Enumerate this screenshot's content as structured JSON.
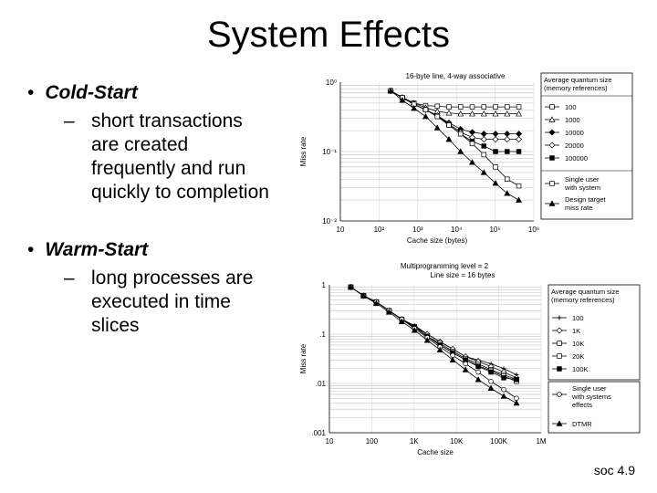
{
  "slide": {
    "title": "System Effects",
    "bullets": [
      {
        "label": "Cold-Start",
        "sub": "short transactions\nare created\nfrequently and run\nquickly to completion"
      },
      {
        "label": "Warm-Start",
        "sub": "long processes are\nexecuted in time\nslices"
      }
    ],
    "dash": "–",
    "footer": "soc 4.9"
  },
  "chart_data": [
    {
      "type": "line",
      "title": "16-byte line, 4-way associative",
      "xlabel": "Cache size (bytes)",
      "ylabel": "Miss rate",
      "xscale": "log",
      "yscale": "log",
      "xlim": [
        10,
        1000000
      ],
      "ylim": [
        0.01,
        1
      ],
      "x_ticks": [
        "10",
        "10²",
        "10³",
        "10⁴",
        "10⁵",
        "10⁶"
      ],
      "y_ticks": [
        "10⁰",
        "10⁻¹",
        "10⁻²"
      ],
      "legend_title": [
        "Average quantum size",
        "(memory references)"
      ],
      "legend_position": "right",
      "x": [
        200,
        400,
        800,
        1600,
        3200,
        6400,
        12800,
        25600,
        51200,
        102400,
        204800,
        409600
      ],
      "series": [
        {
          "name": "100",
          "marker": "square-open",
          "values": [
            0.75,
            0.6,
            0.5,
            0.46,
            0.45,
            0.44,
            0.44,
            0.44,
            0.44,
            0.44,
            0.44,
            0.44
          ]
        },
        {
          "name": "1000",
          "marker": "triangle-open",
          "values": [
            0.75,
            0.6,
            0.5,
            0.43,
            0.38,
            0.36,
            0.35,
            0.35,
            0.35,
            0.35,
            0.35,
            0.35
          ]
        },
        {
          "name": "10000",
          "marker": "diamond-filled",
          "values": [
            0.75,
            0.6,
            0.48,
            0.4,
            0.33,
            0.26,
            0.21,
            0.19,
            0.18,
            0.18,
            0.18,
            0.18
          ]
        },
        {
          "name": "20000",
          "marker": "diamond-open",
          "values": [
            0.75,
            0.6,
            0.48,
            0.4,
            0.33,
            0.25,
            0.19,
            0.16,
            0.15,
            0.15,
            0.15,
            0.15
          ]
        },
        {
          "name": "100000",
          "marker": "square-filled",
          "values": [
            0.75,
            0.6,
            0.48,
            0.4,
            0.32,
            0.24,
            0.18,
            0.14,
            0.12,
            0.1,
            0.1,
            0.1
          ]
        },
        {
          "name": "Single user with system",
          "marker": "square-open",
          "values": [
            0.75,
            0.6,
            0.48,
            0.4,
            0.32,
            0.24,
            0.18,
            0.13,
            0.09,
            0.06,
            0.04,
            0.032
          ]
        },
        {
          "name": "Design target miss rate",
          "marker": "triangle-filled",
          "values": [
            0.75,
            0.55,
            0.42,
            0.32,
            0.22,
            0.15,
            0.1,
            0.07,
            0.05,
            0.035,
            0.025,
            0.02
          ]
        }
      ]
    },
    {
      "type": "line",
      "title": "Multiprogramming level = 2",
      "subtitle": "Line size = 16 bytes",
      "xlabel": "Cache size",
      "ylabel": "Miss rate",
      "xscale": "log",
      "yscale": "log",
      "xlim": [
        10,
        1000000
      ],
      "ylim": [
        0.001,
        1
      ],
      "x_ticks": [
        "10",
        "100",
        "1K",
        "10K",
        "100K",
        "1M"
      ],
      "y_ticks": [
        "1",
        ".1",
        ".01",
        ".001"
      ],
      "legend_title": [
        "Average quantum size",
        "(memory references)"
      ],
      "legend_position": "right",
      "x": [
        32,
        64,
        128,
        256,
        512,
        1024,
        2048,
        4096,
        8192,
        16384,
        32768,
        65536,
        131072,
        262144
      ],
      "series": [
        {
          "name": "100",
          "marker": "plus",
          "values": [
            0.9,
            0.6,
            0.45,
            0.3,
            0.2,
            0.15,
            0.1,
            0.07,
            0.05,
            0.035,
            0.03,
            0.025,
            0.02,
            0.015
          ]
        },
        {
          "name": "1K",
          "marker": "diamond-open",
          "values": [
            0.9,
            0.6,
            0.45,
            0.3,
            0.2,
            0.14,
            0.1,
            0.07,
            0.05,
            0.035,
            0.028,
            0.022,
            0.017,
            0.013
          ]
        },
        {
          "name": "10K",
          "marker": "square-open",
          "values": [
            0.9,
            0.6,
            0.45,
            0.3,
            0.2,
            0.14,
            0.09,
            0.065,
            0.045,
            0.032,
            0.025,
            0.019,
            0.015,
            0.012
          ]
        },
        {
          "name": "20K",
          "marker": "square-open",
          "values": [
            0.9,
            0.6,
            0.45,
            0.3,
            0.2,
            0.14,
            0.09,
            0.06,
            0.042,
            0.03,
            0.023,
            0.018,
            0.014,
            0.011
          ]
        },
        {
          "name": "100K",
          "marker": "square-filled",
          "values": [
            0.9,
            0.6,
            0.45,
            0.3,
            0.2,
            0.14,
            0.09,
            0.06,
            0.042,
            0.03,
            0.022,
            0.017,
            0.013,
            0.012
          ]
        },
        {
          "name": "Single user with systems effects",
          "marker": "circle-open",
          "values": [
            0.9,
            0.6,
            0.45,
            0.3,
            0.2,
            0.13,
            0.085,
            0.055,
            0.037,
            0.025,
            0.017,
            0.011,
            0.0075,
            0.005
          ]
        },
        {
          "name": "DTMR",
          "marker": "triangle-filled",
          "values": [
            0.9,
            0.6,
            0.42,
            0.28,
            0.18,
            0.12,
            0.075,
            0.048,
            0.03,
            0.019,
            0.012,
            0.008,
            0.0055,
            0.004
          ]
        }
      ],
      "legend_entries": [
        {
          "name": "100"
        },
        {
          "name": "1K"
        },
        {
          "name": "10K"
        },
        {
          "name": "20K"
        },
        {
          "name": "100K"
        }
      ],
      "legend_entries_2": [
        {
          "name": "Single user with systems effects"
        },
        {
          "name": "DTMR"
        }
      ]
    }
  ]
}
